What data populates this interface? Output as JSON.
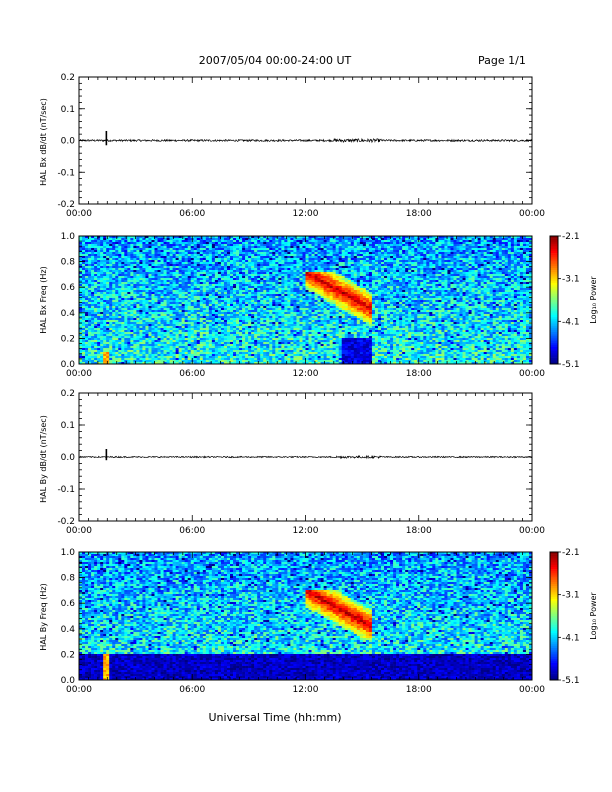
{
  "page": {
    "date_range": "2007/05/04  00:00-24:00 UT",
    "page_label": "Page 1/1",
    "xlabel": "Universal Time (hh:mm)"
  },
  "time_ticks": [
    "00:00",
    "06:00",
    "12:00",
    "18:00",
    "00:00"
  ],
  "colorbar": {
    "label": "Log₁₀ Power",
    "ticks": [
      "-2.1",
      "-3.1",
      "-4.1",
      "-5.1"
    ]
  },
  "chart_data": [
    {
      "type": "line",
      "panel": "Bx dB/dt",
      "ylabel": "HAL Bx dB/dt (nT/sec)",
      "ylim": [
        -0.2,
        0.2
      ],
      "yticks": [
        "0.2",
        "0.1",
        "0.0",
        "-0.1",
        "-0.2"
      ],
      "xlim_hours": [
        0,
        24
      ],
      "baseline": 0.0,
      "spike": {
        "time_hours": 1.45,
        "min": -0.015,
        "max": 0.03
      },
      "noise_amplitude": 0.003,
      "active_interval_hours": [
        13.5,
        16.0
      ]
    },
    {
      "type": "heatmap",
      "panel": "Bx spectrogram",
      "ylabel": "HAL Bx Freq (Hz)",
      "ylim": [
        0.0,
        1.0
      ],
      "yticks": [
        "1.0",
        "0.8",
        "0.6",
        "0.4",
        "0.2",
        "0.0"
      ],
      "xlim_hours": [
        0,
        24
      ],
      "color_range": [
        -5.1,
        -2.1
      ],
      "features": [
        {
          "name": "Pc1 burst",
          "t_start": 12.0,
          "t_end": 15.5,
          "f_low": 0.3,
          "f_high": 0.72,
          "peak_log_power": -2.3
        },
        {
          "name": "low-frequency quiet patch",
          "t_start": 13.9,
          "t_end": 15.5,
          "f_low": 0.0,
          "f_high": 0.2,
          "log_power": -4.8
        },
        {
          "name": "impulse",
          "t_start": 1.3,
          "t_end": 1.6,
          "f_low": 0.0,
          "f_high": 0.1,
          "log_power": -3.0
        }
      ]
    },
    {
      "type": "line",
      "panel": "By dB/dt",
      "ylabel": "HAL By dB/dt (nT/sec)",
      "ylim": [
        -0.2,
        0.2
      ],
      "yticks": [
        "0.2",
        "0.1",
        "0.0",
        "-0.1",
        "-0.2"
      ],
      "xlim_hours": [
        0,
        24
      ],
      "baseline": 0.0,
      "spike": {
        "time_hours": 1.45,
        "min": -0.01,
        "max": 0.025
      },
      "noise_amplitude": 0.002,
      "active_interval_hours": [
        13.5,
        16.0
      ]
    },
    {
      "type": "heatmap",
      "panel": "By spectrogram",
      "ylabel": "HAL By Freq (Hz)",
      "ylim": [
        0.0,
        1.0
      ],
      "yticks": [
        "1.0",
        "0.8",
        "0.6",
        "0.4",
        "0.2",
        "0.0"
      ],
      "xlim_hours": [
        0,
        24
      ],
      "color_range": [
        -5.1,
        -2.1
      ],
      "features": [
        {
          "name": "Pc1 burst",
          "t_start": 12.0,
          "t_end": 15.5,
          "f_low": 0.3,
          "f_high": 0.7,
          "peak_log_power": -2.3
        },
        {
          "name": "low-frequency dark band",
          "t_start": 0.0,
          "t_end": 24.0,
          "f_low": 0.0,
          "f_high": 0.2,
          "log_power": -4.9
        },
        {
          "name": "impulse",
          "t_start": 1.3,
          "t_end": 1.6,
          "f_low": 0.0,
          "f_high": 0.2,
          "log_power": -3.0
        }
      ]
    }
  ]
}
